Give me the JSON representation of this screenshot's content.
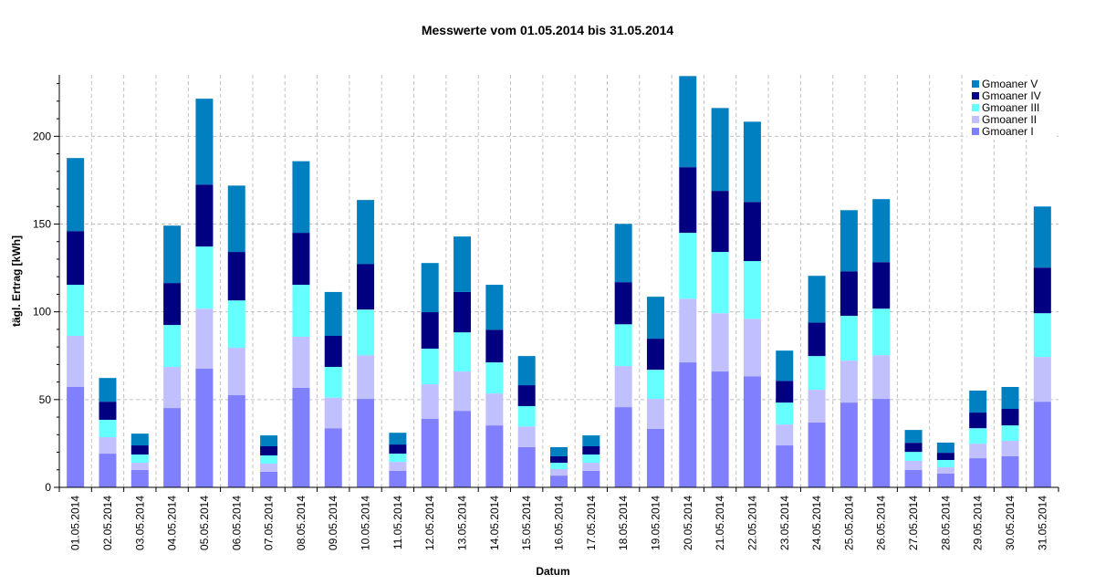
{
  "chart_data": {
    "type": "bar",
    "stacked": true,
    "title": "Messwerte vom 01.05.2014 bis 31.05.2014",
    "xlabel": "Datum",
    "ylabel": "tägl. Ertrag [kWh]",
    "ylim": [
      0,
      235
    ],
    "yticks": [
      0,
      50,
      100,
      150,
      200
    ],
    "grid": true,
    "legend_position": "top-right",
    "categories": [
      "01.05.2014",
      "02.05.2014",
      "03.05.2014",
      "04.05.2014",
      "05.05.2014",
      "06.05.2014",
      "07.05.2014",
      "08.05.2014",
      "09.05.2014",
      "10.05.2014",
      "11.05.2014",
      "12.05.2014",
      "13.05.2014",
      "14.05.2014",
      "15.05.2014",
      "16.05.2014",
      "17.05.2014",
      "18.05.2014",
      "19.05.2014",
      "20.05.2014",
      "21.05.2014",
      "22.05.2014",
      "23.05.2014",
      "24.05.2014",
      "25.05.2014",
      "26.05.2014",
      "27.05.2014",
      "28.05.2014",
      "29.05.2014",
      "30.05.2014",
      "31.05.2014"
    ],
    "series": [
      {
        "name": "Gmoaner I",
        "color": "#8080ff",
        "values": [
          57.2,
          19.2,
          9.9,
          45.2,
          67.6,
          52.5,
          8.9,
          56.7,
          33.7,
          50.4,
          9.4,
          39.0,
          43.6,
          35.3,
          22.9,
          6.7,
          9.4,
          45.7,
          33.3,
          71.2,
          66.0,
          63.3,
          23.9,
          36.9,
          48.3,
          50.4,
          9.9,
          7.8,
          16.6,
          17.7,
          48.8
        ]
      },
      {
        "name": "Gmoaner II",
        "color": "#c0c0ff",
        "values": [
          29.1,
          9.4,
          4.1,
          23.4,
          34.2,
          27.0,
          4.6,
          29.1,
          17.4,
          24.9,
          5.1,
          19.7,
          22.4,
          18.2,
          11.8,
          3.7,
          4.6,
          23.4,
          17.1,
          36.3,
          33.2,
          32.7,
          11.9,
          18.7,
          23.9,
          24.9,
          5.2,
          3.6,
          8.3,
          8.8,
          25.5
        ]
      },
      {
        "name": "Gmoaner III",
        "color": "#66ffff",
        "values": [
          29.1,
          9.9,
          4.7,
          23.9,
          35.4,
          27.0,
          4.7,
          29.6,
          17.5,
          26.0,
          4.7,
          20.3,
          22.3,
          17.7,
          11.6,
          3.6,
          4.7,
          23.8,
          16.6,
          37.5,
          34.9,
          32.9,
          12.5,
          19.2,
          25.5,
          26.5,
          5.1,
          4.2,
          8.8,
          8.8,
          24.9
        ]
      },
      {
        "name": "Gmoaner IV",
        "color": "#000080",
        "values": [
          30.6,
          10.3,
          5.2,
          23.9,
          35.3,
          27.6,
          5.2,
          29.6,
          17.7,
          26.0,
          5.2,
          20.8,
          23.0,
          18.6,
          11.9,
          3.7,
          4.7,
          24.0,
          17.7,
          37.4,
          34.8,
          33.7,
          12.4,
          19.1,
          25.4,
          26.5,
          5.2,
          4.1,
          8.9,
          9.4,
          26.0
        ]
      },
      {
        "name": "Gmoaner V",
        "color": "#0080c0",
        "values": [
          41.6,
          13.5,
          6.7,
          32.7,
          48.9,
          37.8,
          6.2,
          40.8,
          25.0,
          36.4,
          6.7,
          28.0,
          31.6,
          25.6,
          16.6,
          5.2,
          6.2,
          33.2,
          23.9,
          51.9,
          47.2,
          45.7,
          17.2,
          26.6,
          34.8,
          35.9,
          7.3,
          5.8,
          12.5,
          12.5,
          34.8
        ]
      }
    ]
  }
}
